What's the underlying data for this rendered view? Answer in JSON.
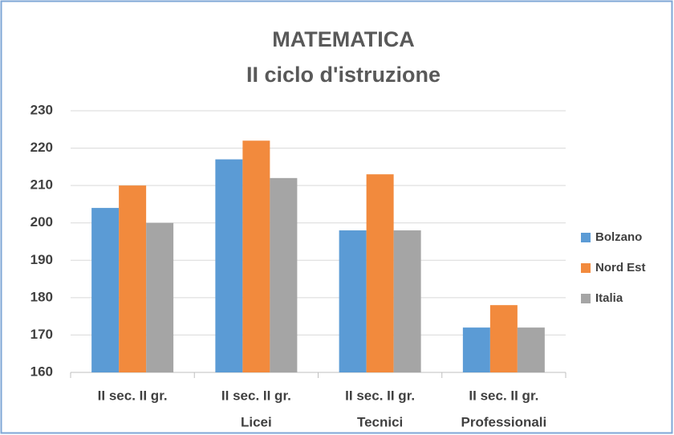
{
  "chart_data": {
    "type": "bar",
    "title": "MATEMATICA",
    "subtitle": "II ciclo d'istruzione",
    "categories": [
      [
        "II sec. II gr."
      ],
      [
        "II sec. II gr.",
        "Licei"
      ],
      [
        "II sec. II gr.",
        "Tecnici"
      ],
      [
        "II sec. II gr.",
        "Professionali"
      ]
    ],
    "series": [
      {
        "name": "Bolzano",
        "color": "#5b9bd5",
        "values": [
          204,
          217,
          198,
          172
        ]
      },
      {
        "name": "Nord Est",
        "color": "#f28a3d",
        "values": [
          210,
          222,
          213,
          178
        ]
      },
      {
        "name": "Italia",
        "color": "#a5a5a5",
        "values": [
          200,
          212,
          198,
          172
        ]
      }
    ],
    "ylim": [
      160,
      230
    ],
    "yticks": [
      160,
      170,
      180,
      190,
      200,
      210,
      220,
      230
    ],
    "grid": true,
    "legend": "right"
  }
}
